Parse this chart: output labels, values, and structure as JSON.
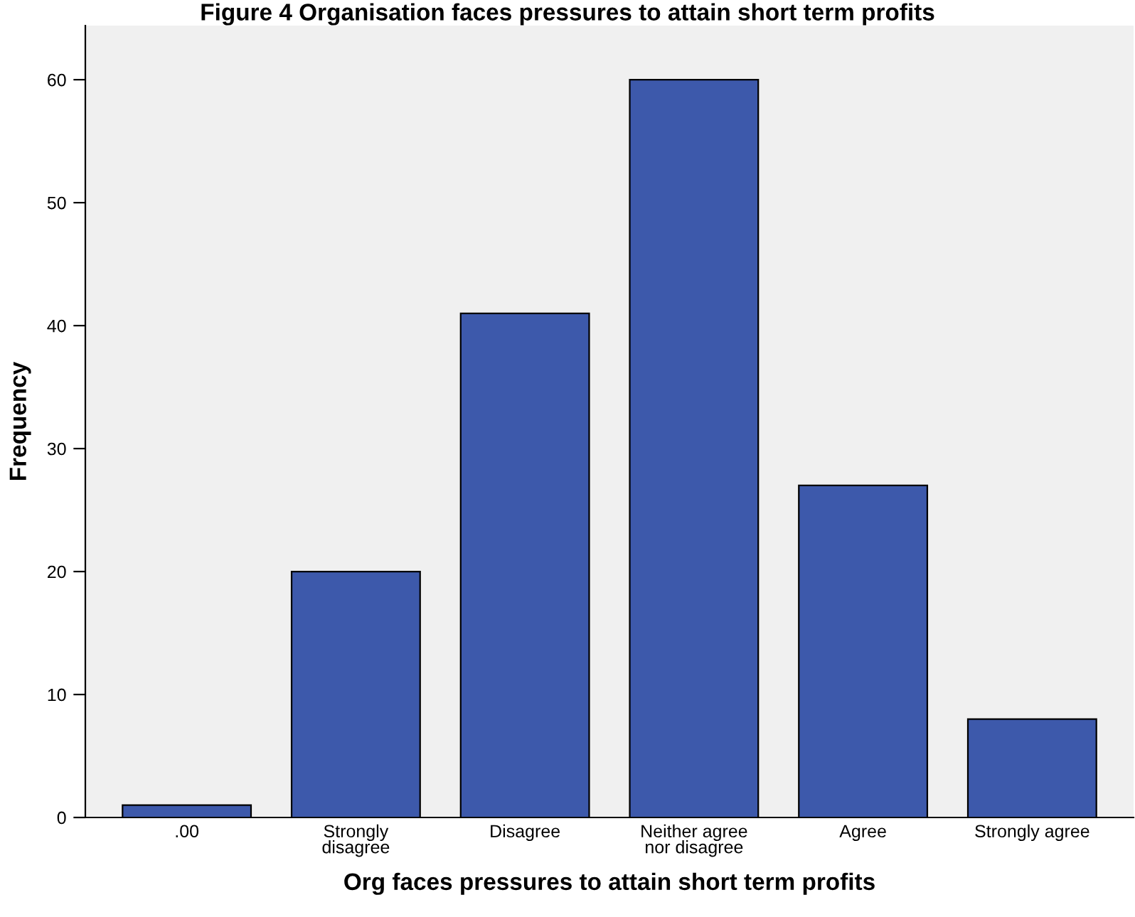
{
  "chart_data": {
    "type": "bar",
    "title": "Figure 4 Organisation faces pressures to attain short term profits",
    "xlabel": "Org faces pressures to attain short term profits",
    "ylabel": "Frequency",
    "categories": [
      ".00",
      "Strongly\ndisagree",
      "Disagree",
      "Neither agree\nnor disagree",
      "Agree",
      "Strongly agree"
    ],
    "values": [
      1,
      20,
      41,
      60,
      27,
      8
    ],
    "color": "#3d59ab",
    "ylim": [
      0,
      64.4
    ],
    "yticks": [
      0,
      10,
      20,
      30,
      40,
      50,
      60
    ],
    "grid": false,
    "legend": false
  }
}
